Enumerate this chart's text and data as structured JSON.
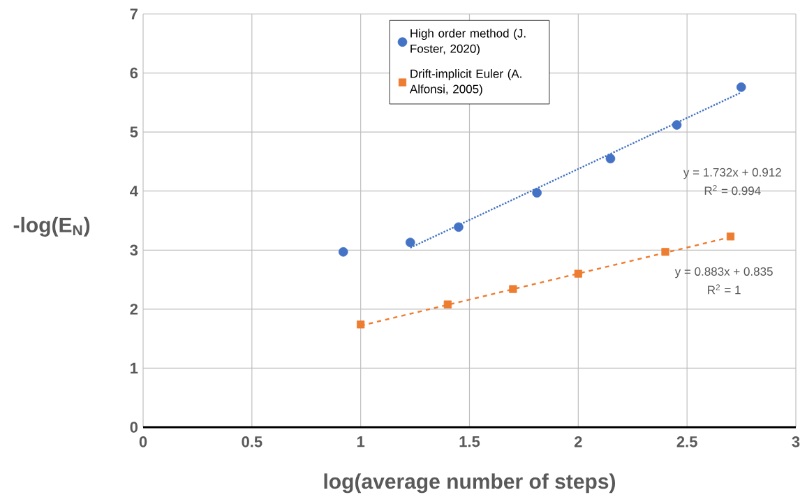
{
  "chart_data": {
    "type": "scatter",
    "xlabel": "log(average number of steps)",
    "ylabel": "-log(E$_{N}$)",
    "series": [
      {
        "name": "High order method (J. Foster, 2020)",
        "color": "#4472c4",
        "marker": "circle",
        "x": [
          0.92,
          1.228,
          1.45,
          1.81,
          2.148,
          2.453,
          2.749
        ],
        "values": [
          2.97,
          3.13,
          3.39,
          3.97,
          4.55,
          5.12,
          5.76
        ]
      },
      {
        "name": "Drift-implicit Euler (A. Alfonsi, 2005)",
        "color": "#ed7d31",
        "marker": "square",
        "x": [
          1.0,
          1.4,
          1.7,
          2.0,
          2.4,
          2.7
        ],
        "values": [
          1.74,
          2.08,
          2.34,
          2.6,
          2.97,
          3.23
        ]
      },
      {
        "type": "line",
        "color": "#4472c4",
        "line_style": "dotted",
        "x": [
          1.228,
          2.749
        ],
        "values": [
          3.04,
          5.67
        ]
      },
      {
        "type": "line",
        "color": "#ed7d31",
        "line_style": "dashed",
        "x": [
          1.0,
          2.7
        ],
        "values": [
          1.72,
          3.22
        ]
      }
    ],
    "annotations": [
      "y = 1.732x + 0.912",
      "R$^{2}$ = 0.994",
      "y = 0.883x + 0.835",
      "R$^{2}$ = 1"
    ],
    "xlim": [
      0,
      3
    ],
    "ylim": [
      0,
      7
    ],
    "xticks": [
      0,
      0.5,
      1,
      1.5,
      2,
      2.5,
      3
    ],
    "yticks": [
      0,
      1,
      2,
      3,
      4,
      5,
      6,
      7
    ],
    "grid": true,
    "legend": "top"
  }
}
